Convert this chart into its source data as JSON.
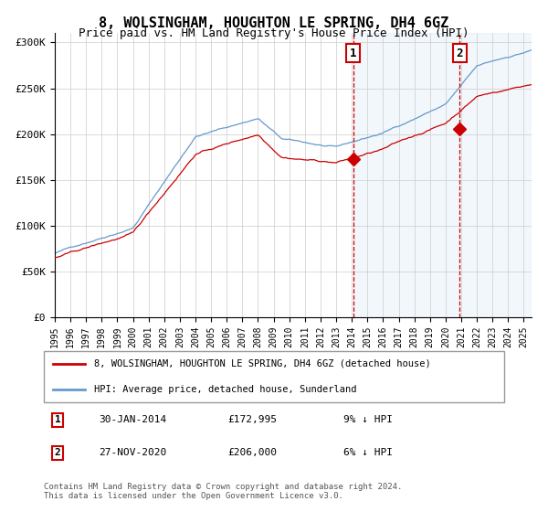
{
  "title": "8, WOLSINGHAM, HOUGHTON LE SPRING, DH4 6GZ",
  "subtitle": "Price paid vs. HM Land Registry's House Price Index (HPI)",
  "legend_line1": "8, WOLSINGHAM, HOUGHTON LE SPRING, DH4 6GZ (detached house)",
  "legend_line2": "HPI: Average price, detached house, Sunderland",
  "annotation1_date": "30-JAN-2014",
  "annotation1_price": "£172,995",
  "annotation1_hpi": "9% ↓ HPI",
  "annotation2_date": "27-NOV-2020",
  "annotation2_price": "£206,000",
  "annotation2_hpi": "6% ↓ HPI",
  "footer": "Contains HM Land Registry data © Crown copyright and database right 2024.\nThis data is licensed under the Open Government Licence v3.0.",
  "red_line_color": "#cc0000",
  "blue_line_color": "#6699cc",
  "dashed_line_color": "#cc0000",
  "point1_date_num": 2014.08,
  "point1_price": 172995,
  "point2_date_num": 2020.91,
  "point2_price": 206000,
  "ylim": [
    0,
    310000
  ],
  "xlim_start": 1995.0,
  "xlim_end": 2025.5
}
